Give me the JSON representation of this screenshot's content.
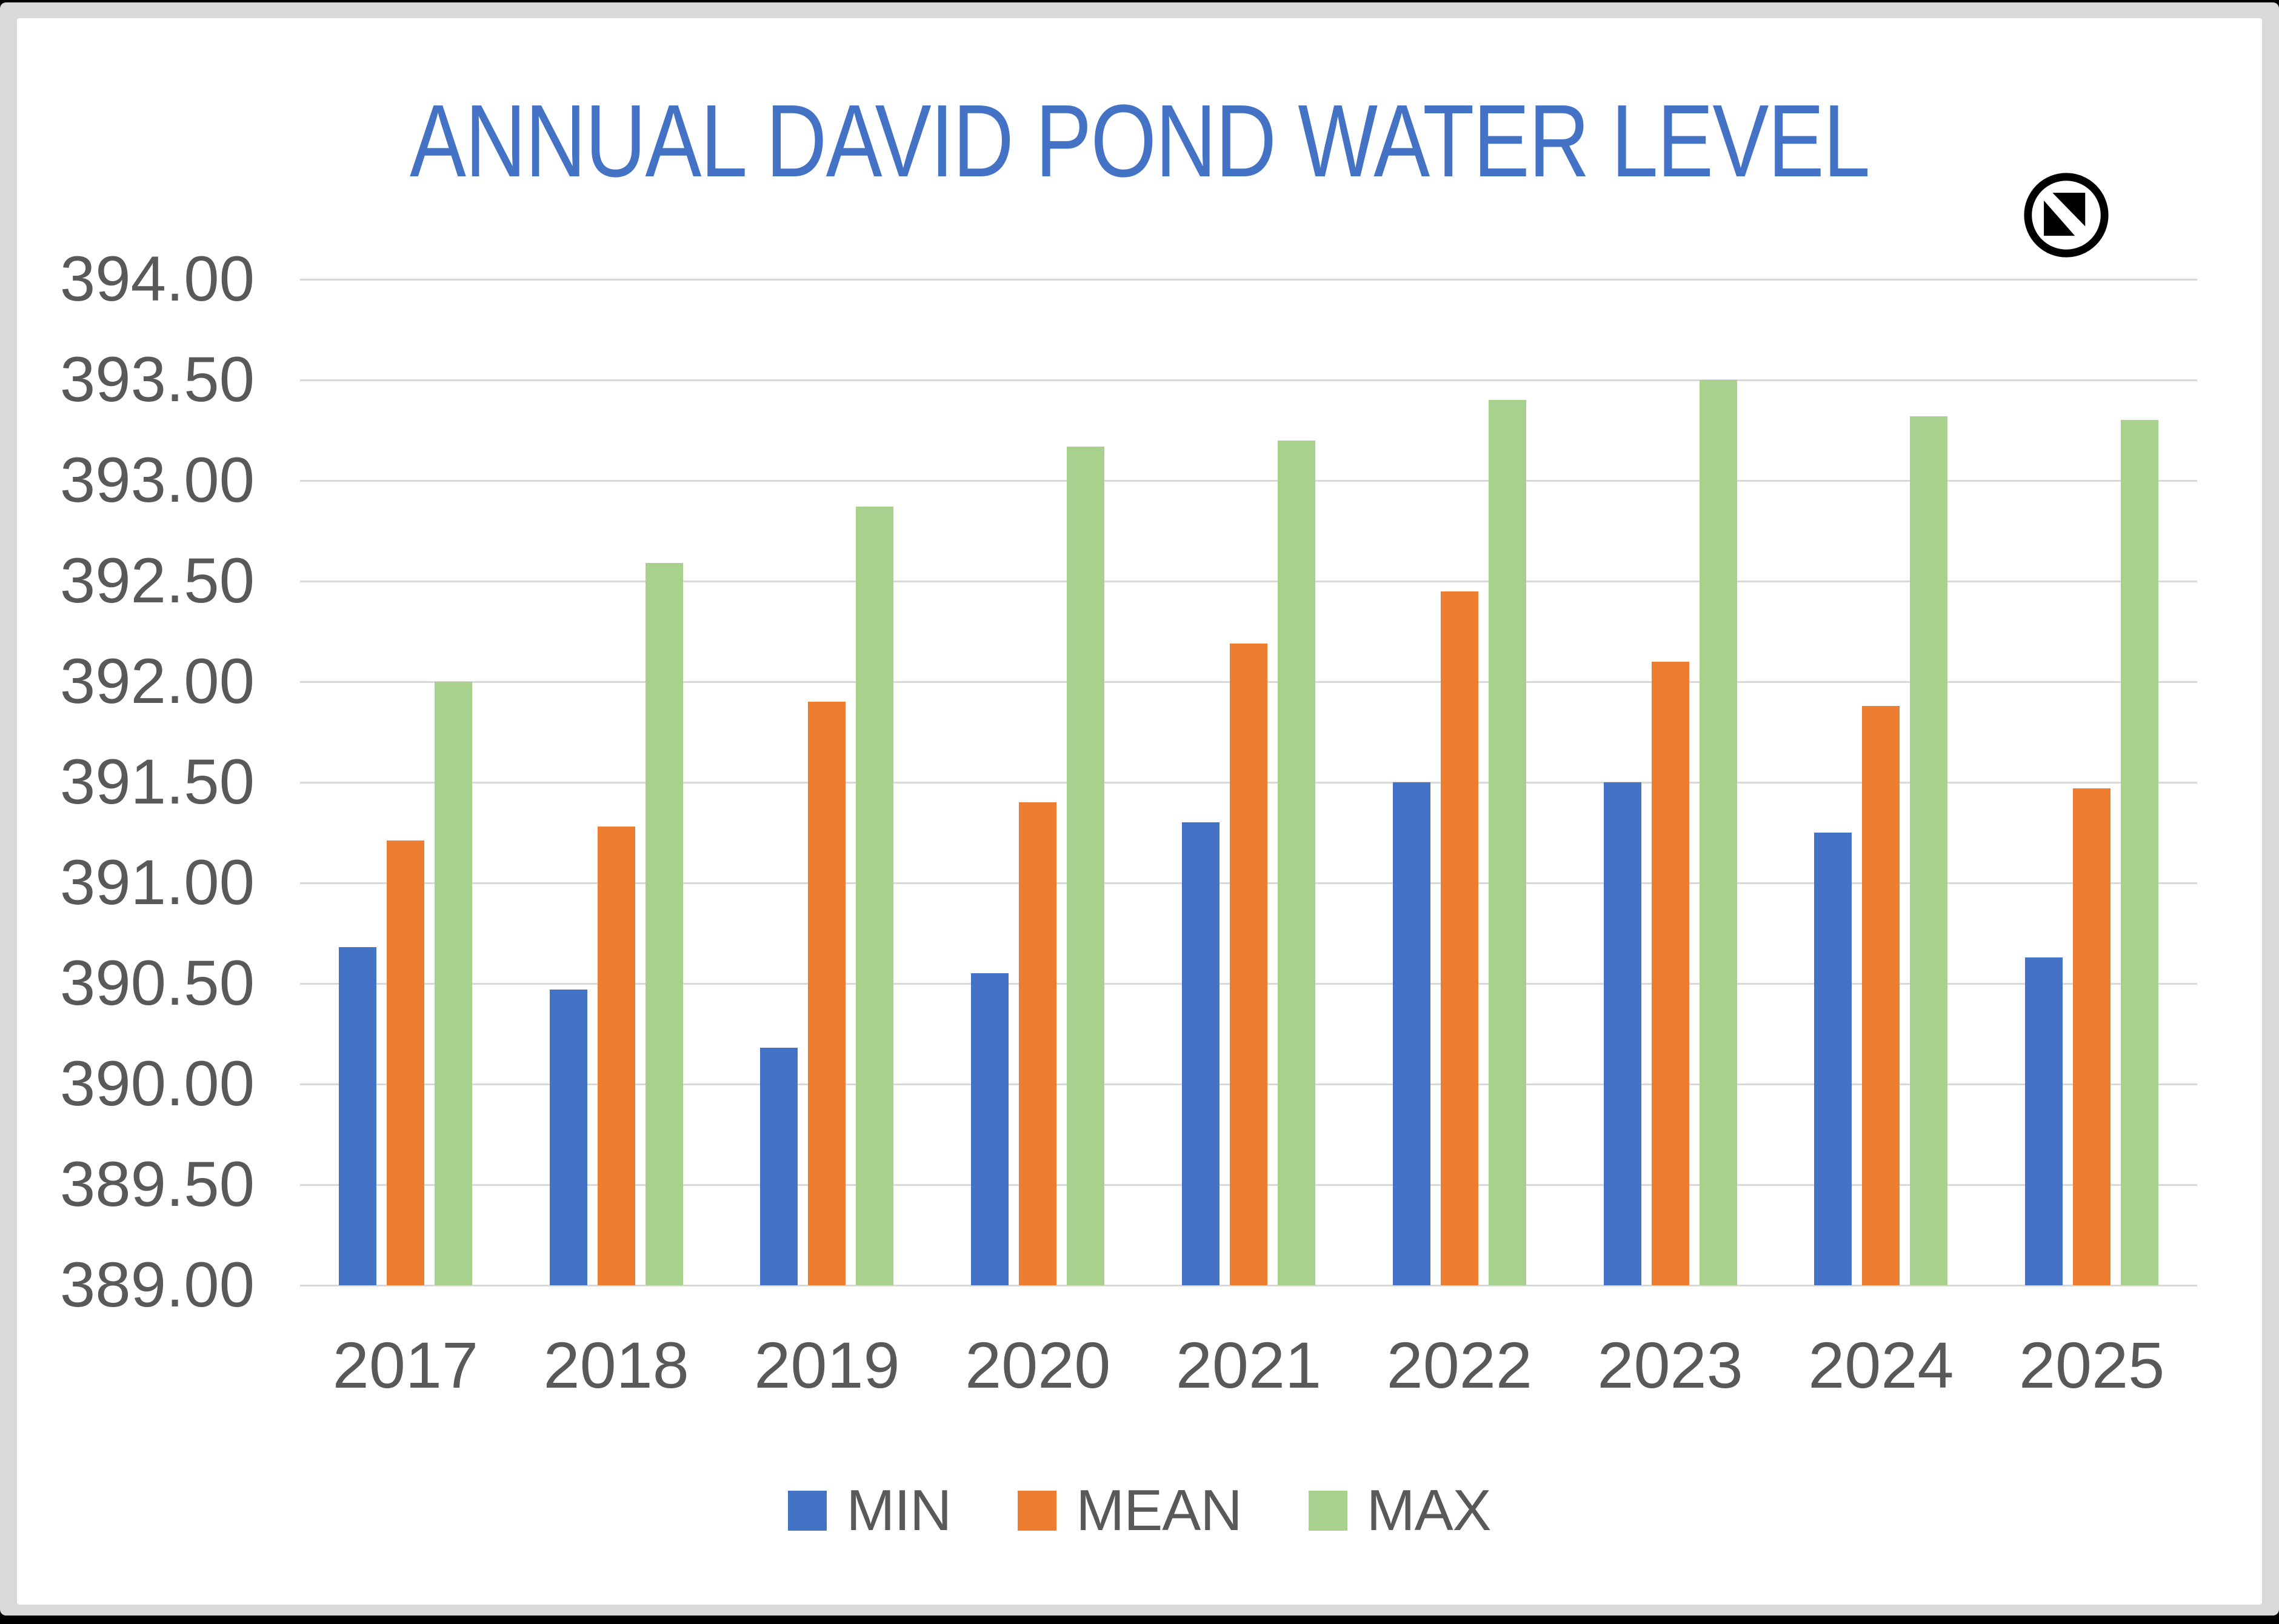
{
  "frame": {
    "outer_background": "#000000",
    "mat_color": "#D9D9D9",
    "card_color": "#FFFFFF"
  },
  "title": "ANNUAL DAVID POND WATER LEVEL",
  "title_color": "#4472C4",
  "icons": {
    "badge": "circled-diagonal-square"
  },
  "chart_data": {
    "type": "bar",
    "title": "ANNUAL DAVID POND WATER LEVEL",
    "categories": [
      "2017",
      "2018",
      "2019",
      "2020",
      "2021",
      "2022",
      "2023",
      "2024",
      "2025"
    ],
    "series": [
      {
        "name": "MIN",
        "color": "#4472C4",
        "values": [
          390.68,
          390.47,
          390.18,
          390.55,
          391.3,
          391.5,
          391.5,
          391.25,
          390.63
        ]
      },
      {
        "name": "MEAN",
        "color": "#ED7D31",
        "values": [
          391.21,
          391.28,
          391.9,
          391.4,
          392.19,
          392.45,
          392.1,
          391.88,
          391.47
        ]
      },
      {
        "name": "MAX",
        "color": "#A9D18E",
        "values": [
          392.0,
          392.59,
          392.87,
          393.17,
          393.2,
          393.4,
          393.5,
          393.32,
          393.3
        ]
      }
    ],
    "xlabel": "",
    "ylabel": "",
    "ylim": [
      389.0,
      394.0
    ],
    "ytick_step": 0.5,
    "yticks": [
      "394.00",
      "393.50",
      "393.00",
      "392.50",
      "392.00",
      "391.50",
      "391.00",
      "390.50",
      "390.00",
      "389.50",
      "389.00"
    ],
    "grid": true,
    "gridline_color": "#D9D9D9",
    "axis_text_color": "#595959",
    "legend_position": "bottom",
    "legend": [
      "MIN",
      "MEAN",
      "MAX"
    ]
  }
}
